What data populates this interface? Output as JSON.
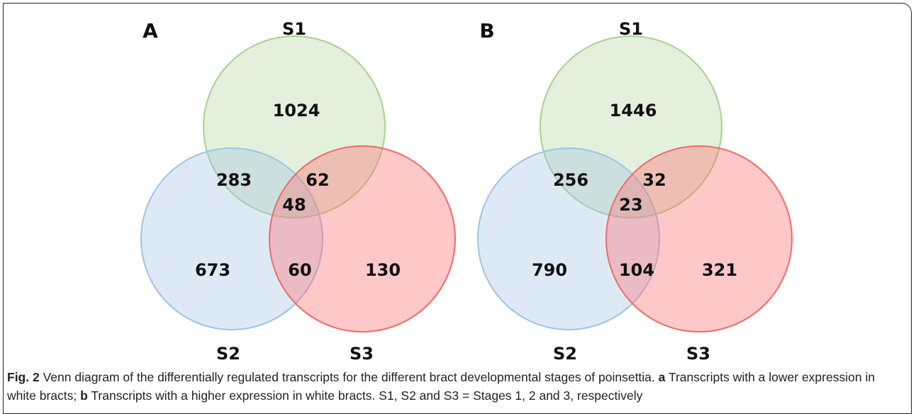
{
  "panels": [
    {
      "label": "A",
      "sets": [
        "S1",
        "S2",
        "S3"
      ],
      "regions": {
        "s1": 1024,
        "s1_s2": 283,
        "s1_s3": 62,
        "s1_s2_s3": 48,
        "s2": 673,
        "s2_s3": 60,
        "s3": 130
      }
    },
    {
      "label": "B",
      "sets": [
        "S1",
        "S2",
        "S3"
      ],
      "regions": {
        "s1": 1446,
        "s1_s2": 256,
        "s1_s3": 32,
        "s1_s2_s3": 23,
        "s2": 790,
        "s2_s3": 104,
        "s3": 321
      }
    }
  ],
  "caption": {
    "label": "Fig. 2",
    "text": "Venn diagram of the differentially regulated transcripts for the different bract developmental stages of poinsettia.",
    "part_a_label": "a",
    "part_a_text": "Transcripts with a lower expression in white bracts;",
    "part_b_label": "b",
    "part_b_text": "Transcripts with a higher expression in white bracts. S1, S2 and S3 = Stages 1, 2 and 3, respectively"
  }
}
